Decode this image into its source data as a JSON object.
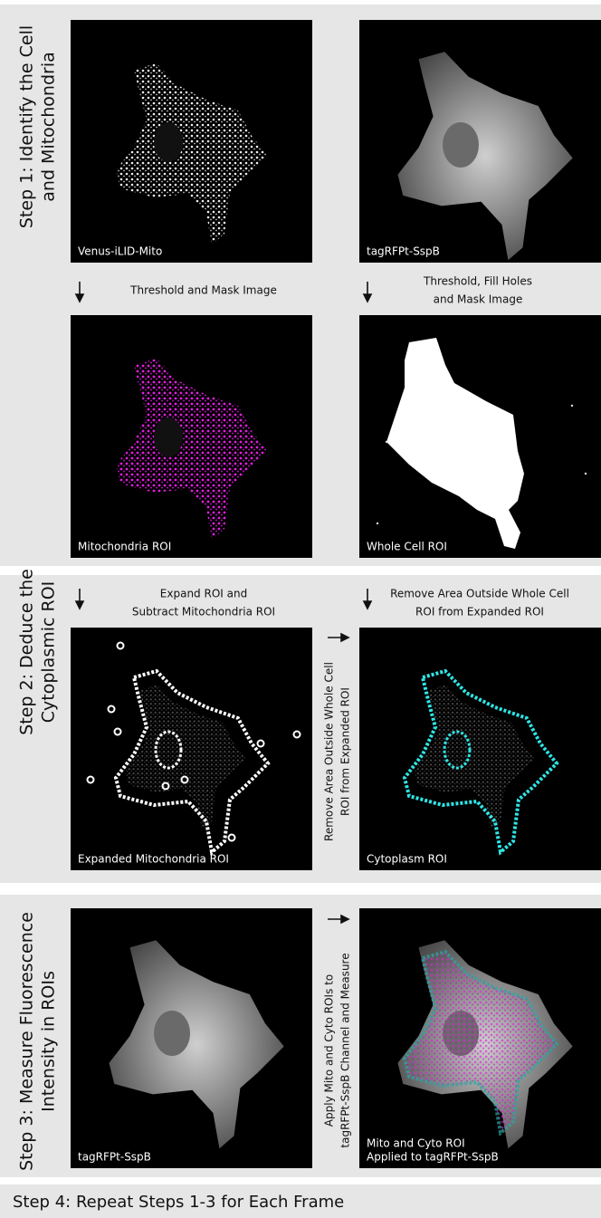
{
  "steps": [
    {
      "title": [
        "Step 1: Identify the Cell",
        "and Mitochondria"
      ]
    },
    {
      "title": [
        "Step 2: Deduce the",
        "Cytoplasmic ROI"
      ]
    },
    {
      "title": [
        "Step 3: Measure Fluorescence",
        "Intensity in ROIs"
      ]
    },
    {
      "title": [
        "Step 4: Repeat Steps 1-3 for Each Frame"
      ]
    }
  ],
  "images": [
    {
      "caption": [
        "Venus-iLID-Mito"
      ]
    },
    {
      "caption": [
        "tagRFPt-SspB"
      ]
    },
    {
      "caption": [
        "Mitochondria ROI"
      ]
    },
    {
      "caption": [
        "Whole Cell ROI"
      ]
    },
    {
      "caption": [
        "Expanded Mitochondria ROI"
      ]
    },
    {
      "caption": [
        "Cytoplasm ROI"
      ]
    },
    {
      "caption": [
        "tagRFPt-SspB"
      ]
    },
    {
      "caption": [
        "Mito and Cyto ROI",
        "Applied to tagRFPt-SspB"
      ]
    }
  ],
  "operations": [
    {
      "lines": [
        "Threshold and Mask Image"
      ]
    },
    {
      "lines": [
        "Threshold, Fill Holes",
        "and Mask Image"
      ]
    },
    {
      "lines": [
        "Expand ROI and",
        "Subtract Mitochondria ROI"
      ]
    },
    {
      "lines": [
        "Remove Area Outside Whole Cell",
        "ROI from Expanded ROI"
      ]
    },
    {
      "lines": [
        "Remove Area Outside Whole Cell",
        "ROI from Expanded ROI"
      ]
    },
    {
      "lines": [
        "Apply Mito and Cyto ROIs to",
        "tagRFPt-SspB Channel and Measure"
      ]
    }
  ]
}
